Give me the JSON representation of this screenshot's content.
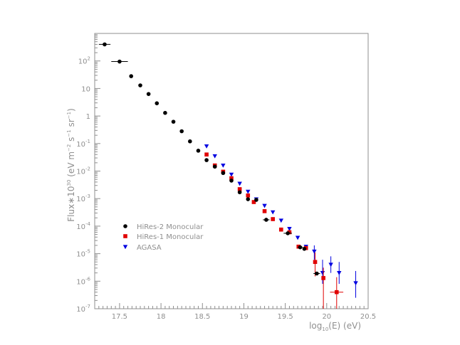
{
  "chart_data": {
    "type": "scatter",
    "xlabel": "log10(E) (eV)",
    "ylabel": "Flux*10^30 (eV m^-2 s^-1 sr^-1)",
    "xlim": [
      17.2,
      20.5
    ],
    "ylim": [
      1e-07,
      1000
    ],
    "y_scale": "log",
    "x_ticks": [
      17.5,
      18,
      18.5,
      19,
      19.5,
      20,
      20.5
    ],
    "y_tick_exponents": [
      -7,
      -6,
      -5,
      -4,
      -3,
      -2,
      -1,
      0,
      1,
      2
    ],
    "legend_position": "bottom-left",
    "legend": [
      "HiRes-2 Monocular",
      "HiRes-1 Monocular",
      "AGASA"
    ],
    "series": [
      {
        "name": "HiRes-2 Monocular",
        "marker": "circle",
        "color": "#000000",
        "points": [
          {
            "x": 17.32,
            "y": 400,
            "xerr": 0.07
          },
          {
            "x": 17.5,
            "y": 95,
            "xerr": 0.1
          },
          {
            "x": 17.64,
            "y": 28
          },
          {
            "x": 17.75,
            "y": 13
          },
          {
            "x": 17.85,
            "y": 6.3
          },
          {
            "x": 17.95,
            "y": 2.9
          },
          {
            "x": 18.05,
            "y": 1.3
          },
          {
            "x": 18.15,
            "y": 0.62
          },
          {
            "x": 18.25,
            "y": 0.28
          },
          {
            "x": 18.35,
            "y": 0.12
          },
          {
            "x": 18.45,
            "y": 0.055
          },
          {
            "x": 18.55,
            "y": 0.025
          },
          {
            "x": 18.65,
            "y": 0.0145
          },
          {
            "x": 18.75,
            "y": 0.0085
          },
          {
            "x": 18.85,
            "y": 0.0045
          },
          {
            "x": 18.95,
            "y": 0.0017
          },
          {
            "x": 19.05,
            "y": 0.00095
          },
          {
            "x": 19.15,
            "y": 0.0009
          },
          {
            "x": 19.27,
            "y": 0.00017,
            "xerr": 0.04
          },
          {
            "x": 19.53,
            "y": 5.5e-05,
            "xerr": 0.05
          },
          {
            "x": 19.68,
            "y": 1.7e-05,
            "xerr": 0.03
          },
          {
            "x": 19.73,
            "y": 1.5e-05
          },
          {
            "x": 19.88,
            "y": 1.9e-06,
            "xerr": 0.04
          }
        ]
      },
      {
        "name": "HiRes-1 Monocular",
        "marker": "square",
        "color": "#e00000",
        "points": [
          {
            "x": 18.55,
            "y": 0.04
          },
          {
            "x": 18.65,
            "y": 0.016
          },
          {
            "x": 18.75,
            "y": 0.0095
          },
          {
            "x": 18.85,
            "y": 0.0055
          },
          {
            "x": 18.95,
            "y": 0.0022
          },
          {
            "x": 19.05,
            "y": 0.0013
          },
          {
            "x": 19.12,
            "y": 0.00075
          },
          {
            "x": 19.25,
            "y": 0.00035
          },
          {
            "x": 19.35,
            "y": 0.00018
          },
          {
            "x": 19.45,
            "y": 7.5e-05
          },
          {
            "x": 19.55,
            "y": 6e-05
          },
          {
            "x": 19.66,
            "y": 1.8e-05
          },
          {
            "x": 19.75,
            "y": 1.6e-05
          },
          {
            "x": 19.86,
            "y": 5e-06,
            "yerr_low": 3.5e-06,
            "yerr_high": 6e-06
          },
          {
            "x": 19.96,
            "y": 1.3e-06,
            "yerr_low": 1.2e-06,
            "yerr_high": 1.8e-06
          },
          {
            "x": 20.12,
            "y": 4e-07,
            "xerr": 0.08,
            "yerr_low": 3e-07,
            "yerr_high": 1e-06
          }
        ]
      },
      {
        "name": "AGASA",
        "marker": "triangle-down",
        "color": "#0000e0",
        "points": [
          {
            "x": 18.55,
            "y": 0.08
          },
          {
            "x": 18.65,
            "y": 0.035
          },
          {
            "x": 18.75,
            "y": 0.016
          },
          {
            "x": 18.85,
            "y": 0.0075
          },
          {
            "x": 18.95,
            "y": 0.0035
          },
          {
            "x": 19.05,
            "y": 0.0018
          },
          {
            "x": 19.15,
            "y": 0.00095
          },
          {
            "x": 19.25,
            "y": 0.00055
          },
          {
            "x": 19.35,
            "y": 0.00032
          },
          {
            "x": 19.45,
            "y": 0.00016
          },
          {
            "x": 19.55,
            "y": 8e-05
          },
          {
            "x": 19.65,
            "y": 3.8e-05
          },
          {
            "x": 19.75,
            "y": 1.8e-05
          },
          {
            "x": 19.85,
            "y": 1.2e-05,
            "yerr_low": 6e-06,
            "yerr_high": 8e-06
          },
          {
            "x": 19.95,
            "y": 2e-06,
            "yerr_low": 1.2e-06,
            "yerr_high": 4e-06
          },
          {
            "x": 20.05,
            "y": 4e-06,
            "yerr_low": 2e-06,
            "yerr_high": 4e-06
          },
          {
            "x": 20.15,
            "y": 2e-06,
            "yerr_low": 1.2e-06,
            "yerr_high": 3e-06
          },
          {
            "x": 20.35,
            "y": 8.5e-07,
            "yerr_low": 6e-07,
            "yerr_high": 1.5e-06
          }
        ]
      }
    ]
  }
}
